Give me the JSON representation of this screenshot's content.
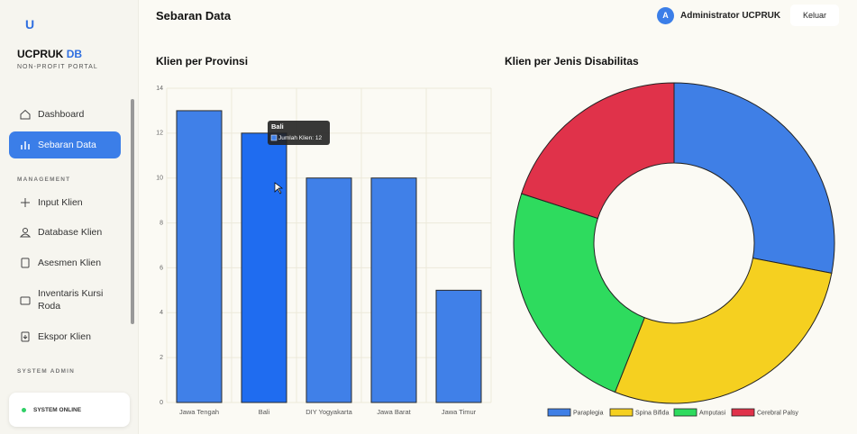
{
  "sidebar": {
    "logo": "U",
    "brand": "UCPRUK",
    "brand_accent": "DB",
    "subtitle": "NON-PROFIT PORTAL",
    "nav": [
      "Dashboard",
      "Sebaran Data"
    ],
    "section_management": "MANAGEMENT",
    "management": [
      "Input Klien",
      "Database Klien",
      "Asesmen Klien",
      "Inventaris Kursi Roda",
      "Ekspor Klien"
    ],
    "section_admin": "SYSTEM ADMIN",
    "status": "SYSTEM ONLINE"
  },
  "header": {
    "title": "Sebaran Data",
    "avatar": "A",
    "user": "Administrator UCPRUK",
    "logout": "Keluar"
  },
  "chart_data": [
    {
      "type": "bar",
      "title": "Klien per Provinsi",
      "categories": [
        "Jawa Tengah",
        "Bali",
        "DIY Yogyakarta",
        "Jawa Barat",
        "Jawa Timur"
      ],
      "series": [
        {
          "name": "Jumlah Klien",
          "color": "#4080e8",
          "values": [
            13,
            12,
            10,
            10,
            5
          ]
        }
      ],
      "ylim": [
        0,
        14
      ],
      "yticks": [
        0,
        2,
        4,
        6,
        8,
        10,
        12,
        14
      ],
      "grid": true,
      "tooltip": {
        "title": "Bali",
        "body": "Jumlah Klien: 12"
      }
    },
    {
      "type": "doughnut",
      "title": "Klien per Jenis Disabilitas",
      "categories": [
        "Paraplegia",
        "Spina Bifida",
        "Amputasi",
        "Cerebral Palsy"
      ],
      "values": [
        14,
        14,
        12,
        10
      ],
      "colors": [
        "#3f7fe6",
        "#f5d020",
        "#2edb5e",
        "#e0324a"
      ],
      "legend": "bottom"
    }
  ]
}
